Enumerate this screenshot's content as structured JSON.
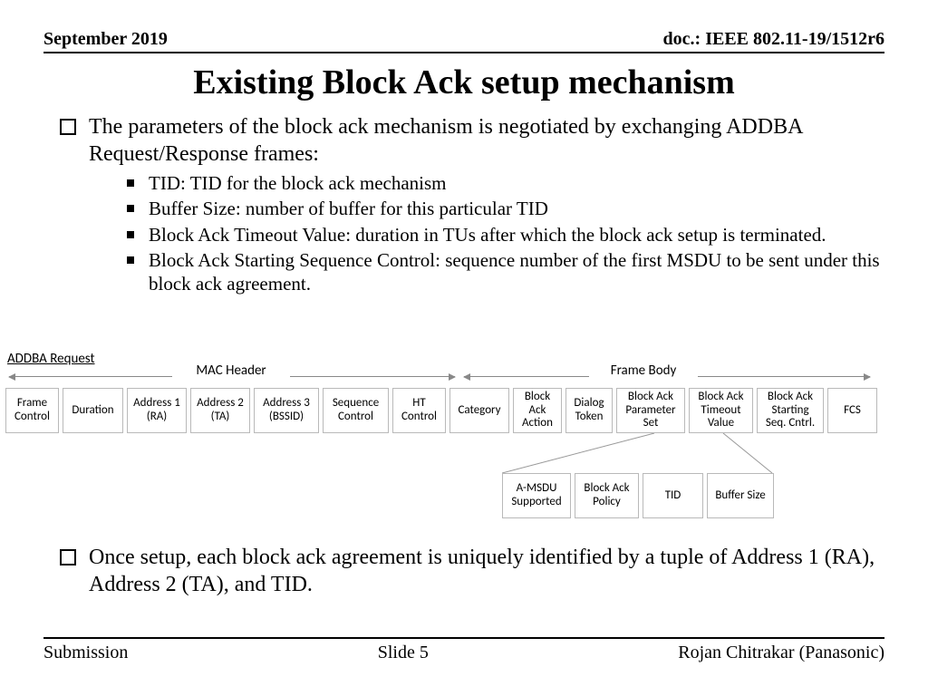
{
  "header": {
    "date": "September 2019",
    "doc": "doc.: IEEE 802.11-19/1512r6"
  },
  "title": "Existing Block Ack setup mechanism",
  "bullets": {
    "main1": "The parameters of the block ack mechanism is negotiated by exchanging ADDBA Request/Response frames:",
    "sub1": "TID: TID for the block ack mechanism",
    "sub2": "Buffer Size: number of buffer for this particular TID",
    "sub3": "Block Ack Timeout Value: duration in TUs after which the block ack setup is terminated.",
    "sub4": "Block Ack Starting Sequence Control: sequence number of the first MSDU to be sent under this block ack agreement.",
    "main2": "Once setup, each block ack agreement is uniquely identified by a tuple of Address 1 (RA), Address 2 (TA), and TID."
  },
  "diagram": {
    "label": "ADDBA Request",
    "sections": {
      "mac": "MAC Header",
      "body": "Frame Body"
    },
    "cells": {
      "c0": "Frame Control",
      "c1": "Duration",
      "c2": "Address 1 (RA)",
      "c3": "Address 2 (TA)",
      "c4": "Address 3 (BSSID)",
      "c5": "Sequence Control",
      "c6": "HT Control",
      "c7": "Category",
      "c8": "Block Ack Action",
      "c9": "Dialog Token",
      "c10": "Block Ack Parameter Set",
      "c11": "Block Ack Timeout Value",
      "c12": "Block Ack Starting Seq. Cntrl.",
      "c13": "FCS"
    },
    "subcells": {
      "s0": "A-MSDU Supported",
      "s1": "Block Ack Policy",
      "s2": "TID",
      "s3": "Buffer Size"
    },
    "widths": {
      "c0": 59,
      "c1": 67,
      "c2": 66,
      "c3": 66,
      "c4": 72,
      "c5": 73,
      "c6": 59,
      "c7": 66,
      "c8": 54,
      "c9": 52,
      "c10": 76,
      "c11": 71,
      "c12": 74,
      "c13": 55,
      "s0": 76,
      "s1": 71,
      "s2": 67,
      "s3": 74
    }
  },
  "footer": {
    "left": "Submission",
    "center": "Slide 5",
    "right": "Rojan Chitrakar (Panasonic)"
  },
  "colors": {
    "border": "#b9b9b9",
    "arrow": "#888888"
  }
}
